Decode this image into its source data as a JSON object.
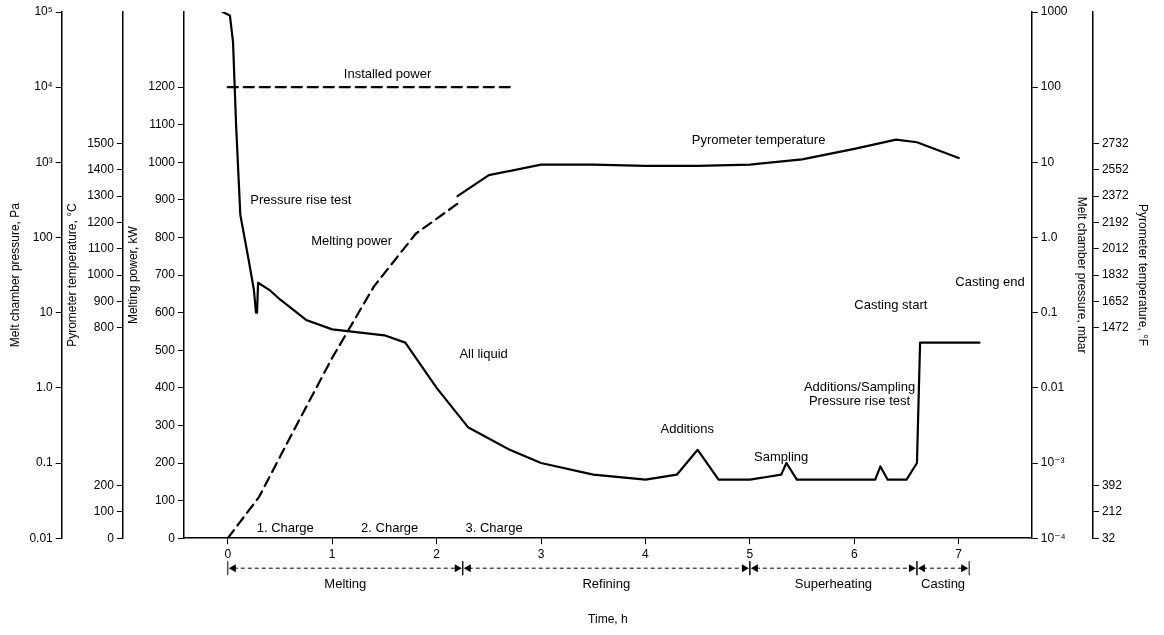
{
  "chart_data": {
    "type": "line",
    "xlabel": "Time, h",
    "ylabel": "Melting power, kW",
    "y2label": "Melt chamber pressure, mbar",
    "y3label": "Pyrometer temperature, °C",
    "xlim": [
      -0.42,
      7.7
    ],
    "xticks": [
      0,
      1,
      2,
      3,
      4,
      5,
      6,
      7
    ],
    "ylim": [
      0,
      1400
    ],
    "yticks": [
      0,
      100,
      200,
      300,
      400,
      500,
      600,
      700,
      800,
      900,
      1000,
      1100,
      1200
    ],
    "y2lim": [
      0.0001,
      1000
    ],
    "y2ticks": [
      {
        "value": 0.0001,
        "label": "10⁻⁴"
      },
      {
        "value": 0.001,
        "label": "10⁻³"
      },
      0.01,
      0.1,
      {
        "value": 1,
        "label": "1.0"
      },
      10,
      100,
      1000
    ],
    "y3lim": [
      0,
      2000
    ],
    "y3ticks": [
      0,
      100,
      200,
      800,
      900,
      1000,
      1100,
      1200,
      1300,
      1400,
      1500
    ],
    "log": "y2",
    "grid": false,
    "legend": false,
    "marker": "none",
    "series": [
      {
        "name": "Installed power",
        "color": "#000000",
        "line_style": "dashed",
        "x": [
          0,
          2.7
        ],
        "values": [
          1200,
          1200
        ]
      },
      {
        "name": "Melting power",
        "color": "#000000",
        "line_style": "dashed",
        "x": [
          0,
          0.3,
          0.6,
          1.0,
          1.4,
          1.8,
          2.2
        ],
        "values": [
          0,
          110,
          270,
          480,
          670,
          810,
          890
        ]
      },
      {
        "name": "Pyrometer temperature",
        "color": "#000000",
        "line_style": "solid",
        "axis": "y3",
        "x": [
          2.2,
          2.5,
          3,
          3.5,
          4,
          4.5,
          5,
          5.5,
          6,
          6.4,
          6.6,
          7.0
        ],
        "values": [
          1300,
          1380,
          1420,
          1420,
          1415,
          1415,
          1420,
          1440,
          1480,
          1515,
          1505,
          1445
        ]
      },
      {
        "color": "#000000",
        "line_style": "solid",
        "axis": "y2",
        "x": [
          -0.05,
          0.02,
          0.05,
          0.08,
          0.12,
          0.2,
          0.25,
          0.27,
          0.28,
          0.29,
          0.4,
          0.5,
          0.75,
          1.0,
          1.5,
          1.7,
          2.0,
          2.3,
          2.7,
          3,
          3.5,
          4,
          4.3,
          4.5,
          4.7,
          5,
          5.3,
          5.35,
          5.45,
          6.2,
          6.25,
          6.32,
          6.5,
          6.6,
          6.63,
          7.2
        ],
        "values": [
          1000,
          900,
          400,
          30,
          2,
          0.5,
          0.2,
          0.1,
          0.1,
          0.25,
          0.2,
          0.15,
          0.08,
          0.06,
          0.05,
          0.04,
          0.01,
          0.003,
          0.0015,
          0.001,
          0.0007,
          0.0006,
          0.0007,
          0.0015,
          0.0006,
          0.0006,
          0.0007,
          0.001,
          0.0006,
          0.0006,
          0.0009,
          0.0006,
          0.0006,
          0.001,
          0.04,
          0.04
        ]
      }
    ],
    "annotations": [
      "Melt chamber pressure, Pa",
      "0.01",
      "0.1",
      "1.0",
      "10",
      "100",
      "10³",
      "10⁴",
      "10⁵",
      "Pyrometer temperature, °F",
      "32",
      "212",
      "392",
      "1472",
      "1652",
      "1832",
      "2012",
      "2192",
      "2372",
      "2552",
      "2732",
      "Pressure rise test",
      "All liquid",
      "Additions",
      "Sampling",
      "Additions/Sampling",
      "Pressure rise test",
      "Casting start",
      "Casting end",
      "1. Charge",
      "2. Charge",
      "3. Charge",
      "Melting",
      "Refining",
      "Superheating",
      "Casting"
    ]
  }
}
